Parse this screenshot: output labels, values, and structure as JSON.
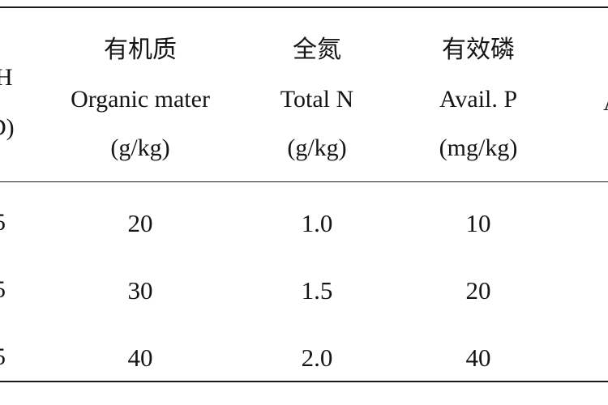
{
  "table": {
    "partial_left_header": [
      "H",
      "D)"
    ],
    "partial_left_cells": [
      "5",
      "5",
      "5"
    ],
    "partial_right_header": "A",
    "columns": [
      {
        "zh": "有机质",
        "en": "Organic mater",
        "unit": "(g/kg)"
      },
      {
        "zh": "全氮",
        "en": "Total N",
        "unit": "(g/kg)"
      },
      {
        "zh": "有效磷",
        "en": "Avail. P",
        "unit": "(mg/kg)"
      }
    ],
    "rows": [
      [
        "20",
        "1.0",
        "10"
      ],
      [
        "30",
        "1.5",
        "20"
      ],
      [
        "40",
        "2.0",
        "40"
      ]
    ]
  }
}
